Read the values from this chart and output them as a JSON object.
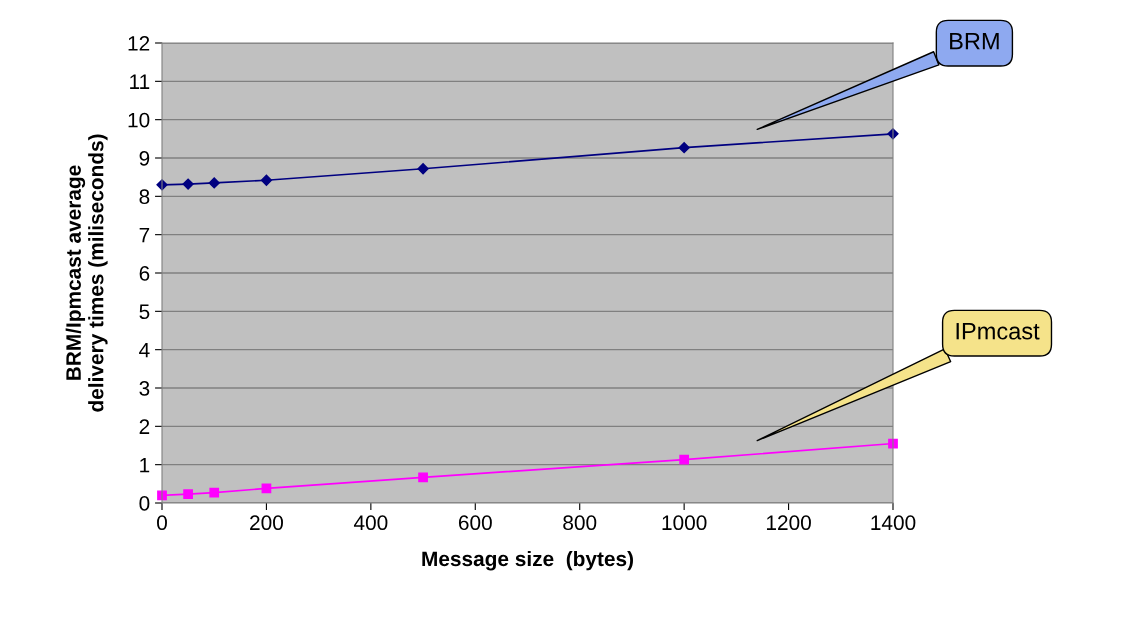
{
  "chart_data": {
    "type": "line",
    "xlabel": "Message size  (bytes)",
    "ylabel": "BRM/Ipmcast average\ndelivery times (miliseconds)",
    "x": [
      0,
      50,
      100,
      200,
      500,
      1000,
      1400
    ],
    "series": [
      {
        "name": "BRM",
        "color": "#000080",
        "marker": "diamond",
        "values": [
          8.3,
          8.32,
          8.35,
          8.42,
          8.72,
          9.27,
          9.63
        ]
      },
      {
        "name": "IPmcast",
        "color": "#ff00ff",
        "marker": "square",
        "values": [
          0.2,
          0.23,
          0.27,
          0.38,
          0.67,
          1.13,
          1.55
        ]
      }
    ],
    "xlim": [
      0,
      1400
    ],
    "xticks": [
      0,
      200,
      400,
      600,
      800,
      1000,
      1200,
      1400
    ],
    "ylim": [
      0,
      12
    ],
    "yticks": [
      0,
      1,
      2,
      3,
      4,
      5,
      6,
      7,
      8,
      9,
      10,
      11,
      12
    ],
    "grid": "y",
    "legend": false
  }
}
